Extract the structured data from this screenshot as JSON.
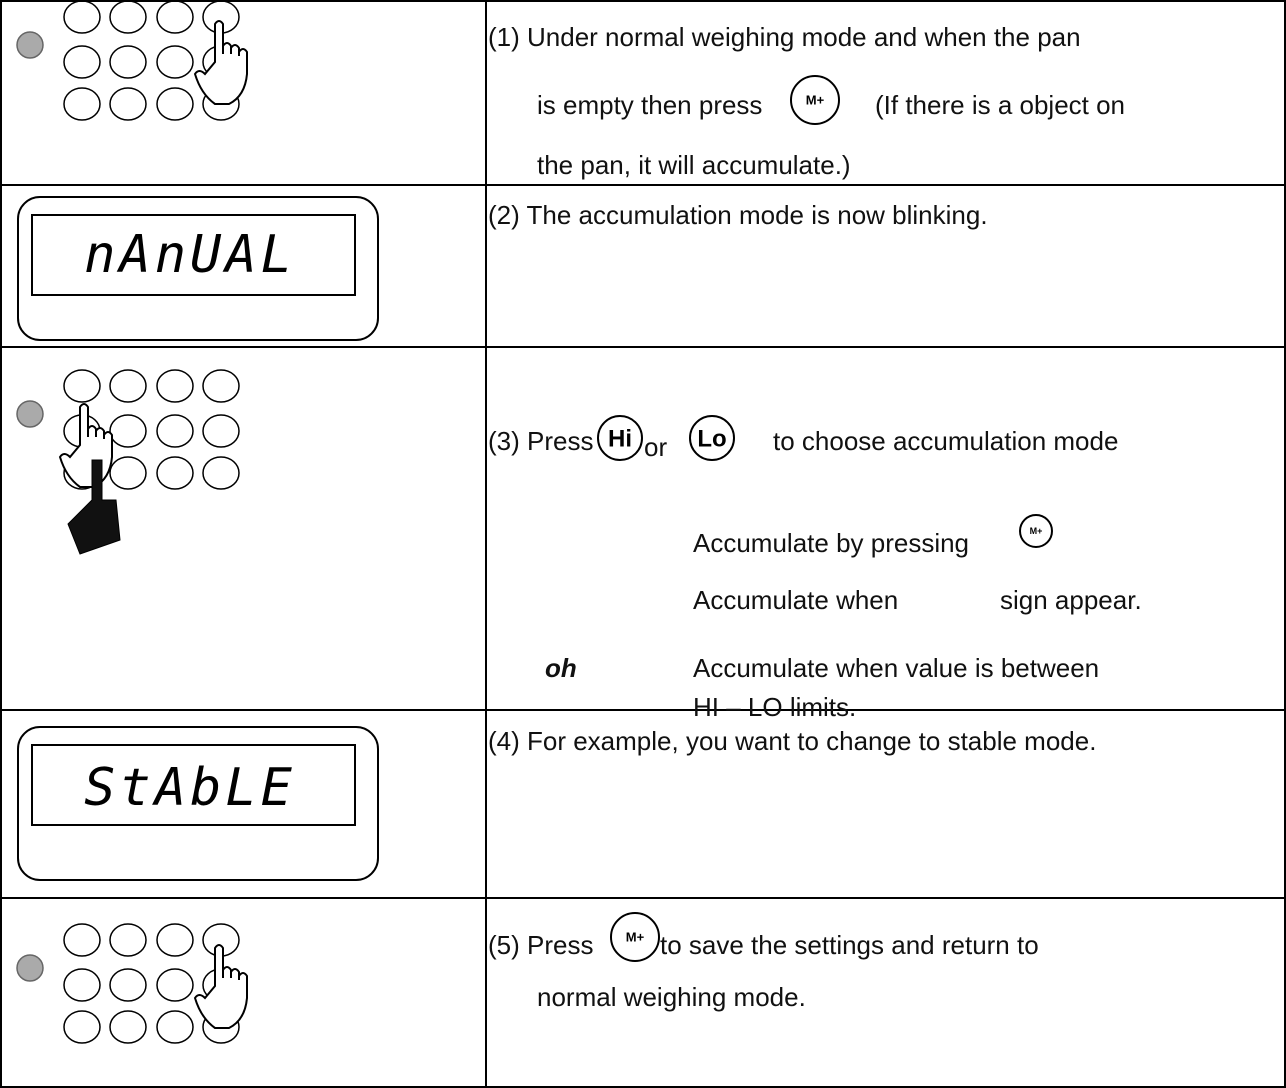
{
  "buttons": {
    "m_plus": "M+",
    "hi": "Hi",
    "lo": "Lo",
    "oh": "oh"
  },
  "rows": [
    {
      "lines": [
        "(1) Under normal weighing mode and when the pan",
        "is empty then press",
        "(If there is a object on",
        "the pan, it will accumulate.)"
      ]
    },
    {
      "display": "nAnUAL",
      "lines": [
        "(2) The accumulation mode is now blinking."
      ]
    },
    {
      "lines": [
        "(3) Press",
        "or",
        "to choose accumulation mode",
        "Accumulate by pressing",
        "Accumulate when",
        "sign appear.",
        "Accumulate when value is between",
        "HI – LO limits."
      ]
    },
    {
      "display": "StAbLE",
      "lines": [
        "(4) For example, you want to change to stable mode."
      ]
    },
    {
      "lines": [
        "(5) Press",
        "to save the settings and return to",
        "normal weighing mode."
      ]
    }
  ]
}
